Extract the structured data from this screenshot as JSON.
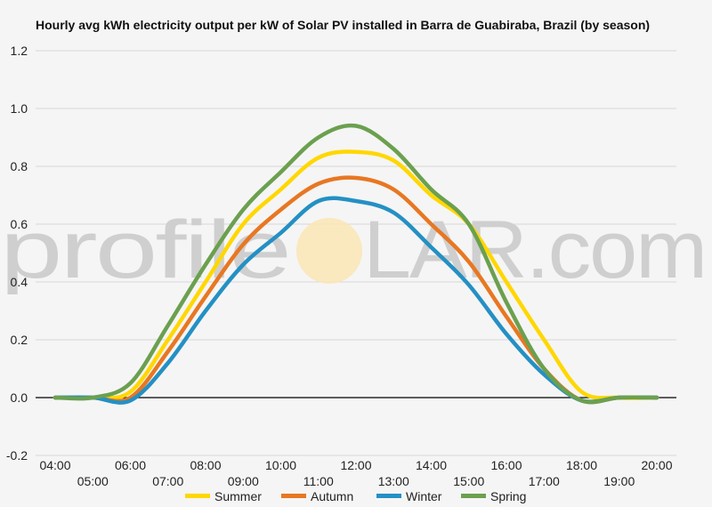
{
  "watermark": {
    "left": "profile",
    "o": "O",
    "right": "LAR.com"
  },
  "chart_data": {
    "type": "line",
    "title": "Hourly avg kWh electricity output per kW of Solar PV installed in Barra de Guabiraba, Brazil (by season)",
    "xlabel": "",
    "ylabel": "",
    "x": [
      "04:00",
      "05:00",
      "06:00",
      "07:00",
      "08:00",
      "09:00",
      "10:00",
      "11:00",
      "12:00",
      "13:00",
      "14:00",
      "15:00",
      "16:00",
      "17:00",
      "18:00",
      "19:00",
      "20:00"
    ],
    "ylim": [
      -0.2,
      1.2
    ],
    "yticks": [
      "-0.2",
      "0.0",
      "0.2",
      "0.4",
      "0.6",
      "0.8",
      "1.0",
      "1.2"
    ],
    "grid": true,
    "legend_position": "bottom",
    "series": [
      {
        "name": "Summer",
        "color": "#FFD700",
        "values": [
          0,
          0,
          0.02,
          0.2,
          0.4,
          0.6,
          0.72,
          0.83,
          0.85,
          0.82,
          0.7,
          0.6,
          0.4,
          0.2,
          0.02,
          0,
          0
        ]
      },
      {
        "name": "Autumn",
        "color": "#E87722",
        "values": [
          0,
          0,
          0.0,
          0.16,
          0.35,
          0.53,
          0.65,
          0.74,
          0.76,
          0.72,
          0.6,
          0.47,
          0.28,
          0.1,
          -0.01,
          0,
          0
        ]
      },
      {
        "name": "Winter",
        "color": "#2490C4",
        "values": [
          0,
          0,
          -0.01,
          0.12,
          0.3,
          0.46,
          0.57,
          0.68,
          0.68,
          0.64,
          0.52,
          0.39,
          0.22,
          0.08,
          -0.01,
          0,
          0
        ]
      },
      {
        "name": "Spring",
        "color": "#6BA04F",
        "values": [
          0,
          0,
          0.05,
          0.25,
          0.46,
          0.65,
          0.78,
          0.9,
          0.94,
          0.86,
          0.72,
          0.6,
          0.33,
          0.1,
          -0.01,
          0,
          0
        ]
      }
    ]
  }
}
